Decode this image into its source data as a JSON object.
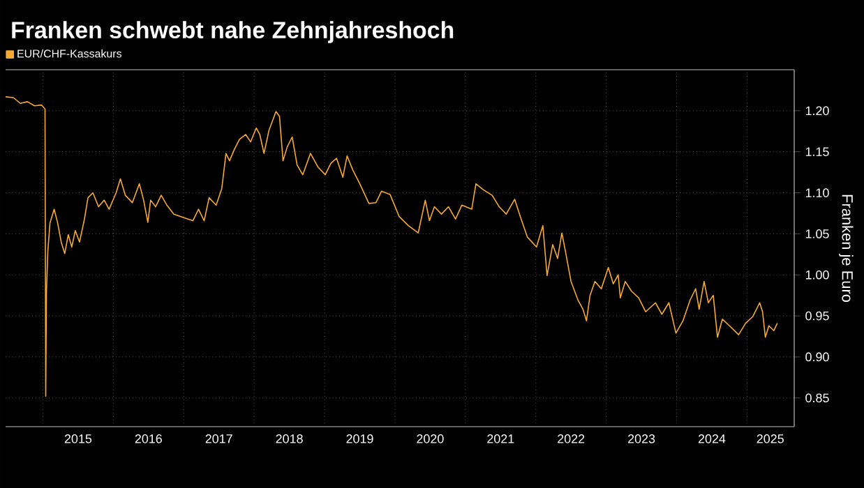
{
  "chart_data": {
    "type": "line",
    "title": "Franken schwebt nahe Zehnjahreshoch",
    "ylabel": "Franken je Euro",
    "legend": "top left",
    "grid": true,
    "xlim": [
      2014.47,
      2025.67
    ],
    "ylim": [
      0.815,
      1.25
    ],
    "xticks": [
      {
        "value": 2015,
        "label": null
      },
      {
        "value": 2016,
        "label": null
      },
      {
        "value": 2017,
        "label": null
      },
      {
        "value": 2018,
        "label": null
      },
      {
        "value": 2019,
        "label": null
      },
      {
        "value": 2020,
        "label": null
      },
      {
        "value": 2021,
        "label": null
      },
      {
        "value": 2022,
        "label": null
      },
      {
        "value": 2023,
        "label": null
      },
      {
        "value": 2024,
        "label": null
      },
      {
        "value": 2025,
        "label": null
      },
      {
        "value": 2015.5,
        "label": "2015"
      },
      {
        "value": 2016.5,
        "label": "2016"
      },
      {
        "value": 2017.5,
        "label": "2017"
      },
      {
        "value": 2018.5,
        "label": "2018"
      },
      {
        "value": 2019.5,
        "label": "2019"
      },
      {
        "value": 2020.5,
        "label": "2020"
      },
      {
        "value": 2021.5,
        "label": "2021"
      },
      {
        "value": 2022.5,
        "label": "2022"
      },
      {
        "value": 2023.5,
        "label": "2023"
      },
      {
        "value": 2024.5,
        "label": "2024"
      },
      {
        "value": 2025.33,
        "label": "2025"
      }
    ],
    "yticks": [
      {
        "value": 0.85,
        "label": "0.85"
      },
      {
        "value": 0.9,
        "label": "0.90"
      },
      {
        "value": 0.95,
        "label": "0.95"
      },
      {
        "value": 1.0,
        "label": "1.00"
      },
      {
        "value": 1.05,
        "label": "1.05"
      },
      {
        "value": 1.1,
        "label": "1.10"
      },
      {
        "value": 1.15,
        "label": "1.15"
      },
      {
        "value": 1.2,
        "label": "1.20"
      }
    ],
    "series": [
      {
        "name": "EUR/CHF-Kassakurs",
        "color": "#f7a934",
        "x": [
          2014.47,
          2014.58,
          2014.68,
          2014.78,
          2014.88,
          2014.98,
          2015.03,
          2015.04,
          2015.05,
          2015.07,
          2015.1,
          2015.16,
          2015.21,
          2015.26,
          2015.31,
          2015.36,
          2015.41,
          2015.46,
          2015.52,
          2015.59,
          2015.64,
          2015.71,
          2015.79,
          2015.87,
          2015.94,
          2016.04,
          2016.1,
          2016.17,
          2016.27,
          2016.37,
          2016.43,
          2016.49,
          2016.53,
          2016.6,
          2016.68,
          2016.76,
          2016.86,
          2016.96,
          2017.06,
          2017.13,
          2017.21,
          2017.29,
          2017.36,
          2017.46,
          2017.54,
          2017.6,
          2017.65,
          2017.72,
          2017.79,
          2017.88,
          2017.95,
          2018.03,
          2018.08,
          2018.14,
          2018.21,
          2018.31,
          2018.36,
          2018.41,
          2018.47,
          2018.54,
          2018.61,
          2018.69,
          2018.8,
          2018.91,
          2019.01,
          2019.09,
          2019.17,
          2019.26,
          2019.32,
          2019.4,
          2019.5,
          2019.63,
          2019.73,
          2019.81,
          2019.93,
          2020.06,
          2020.19,
          2020.33,
          2020.43,
          2020.49,
          2020.56,
          2020.66,
          2020.76,
          2020.86,
          2020.95,
          2021.09,
          2021.15,
          2021.25,
          2021.38,
          2021.48,
          2021.58,
          2021.7,
          2021.78,
          2021.88,
          2022.01,
          2022.1,
          2022.16,
          2022.24,
          2022.31,
          2022.37,
          2022.42,
          2022.5,
          2022.6,
          2022.67,
          2022.72,
          2022.77,
          2022.84,
          2022.93,
          2023.03,
          2023.1,
          2023.17,
          2023.2,
          2023.27,
          2023.36,
          2023.46,
          2023.56,
          2023.7,
          2023.79,
          2023.89,
          2023.99,
          2024.09,
          2024.19,
          2024.27,
          2024.32,
          2024.39,
          2024.45,
          2024.52,
          2024.58,
          2024.65,
          2024.75,
          2024.88,
          2024.98,
          2025.08,
          2025.18,
          2025.22,
          2025.26,
          2025.31,
          2025.38,
          2025.43
        ],
        "values": [
          1.217,
          1.216,
          1.209,
          1.211,
          1.206,
          1.207,
          1.202,
          0.852,
          0.978,
          1.029,
          1.063,
          1.08,
          1.063,
          1.04,
          1.026,
          1.049,
          1.034,
          1.054,
          1.04,
          1.068,
          1.094,
          1.1,
          1.083,
          1.091,
          1.08,
          1.1,
          1.117,
          1.097,
          1.088,
          1.111,
          1.091,
          1.064,
          1.091,
          1.083,
          1.097,
          1.085,
          1.074,
          1.071,
          1.068,
          1.066,
          1.08,
          1.066,
          1.094,
          1.085,
          1.105,
          1.148,
          1.139,
          1.153,
          1.165,
          1.171,
          1.162,
          1.179,
          1.171,
          1.148,
          1.176,
          1.199,
          1.193,
          1.139,
          1.156,
          1.168,
          1.134,
          1.122,
          1.148,
          1.131,
          1.122,
          1.136,
          1.142,
          1.119,
          1.145,
          1.128,
          1.111,
          1.087,
          1.088,
          1.102,
          1.098,
          1.071,
          1.06,
          1.051,
          1.091,
          1.066,
          1.083,
          1.074,
          1.083,
          1.068,
          1.085,
          1.08,
          1.111,
          1.104,
          1.097,
          1.083,
          1.074,
          1.092,
          1.071,
          1.046,
          1.034,
          1.06,
          0.999,
          1.037,
          1.02,
          1.051,
          1.029,
          0.992,
          0.969,
          0.958,
          0.944,
          0.975,
          0.992,
          0.983,
          1.009,
          0.989,
          1.0,
          0.972,
          0.992,
          0.98,
          0.972,
          0.955,
          0.966,
          0.952,
          0.966,
          0.929,
          0.944,
          0.969,
          0.983,
          0.958,
          0.992,
          0.966,
          0.975,
          0.924,
          0.946,
          0.938,
          0.927,
          0.941,
          0.949,
          0.966,
          0.955,
          0.924,
          0.938,
          0.932,
          0.941
        ]
      }
    ]
  }
}
